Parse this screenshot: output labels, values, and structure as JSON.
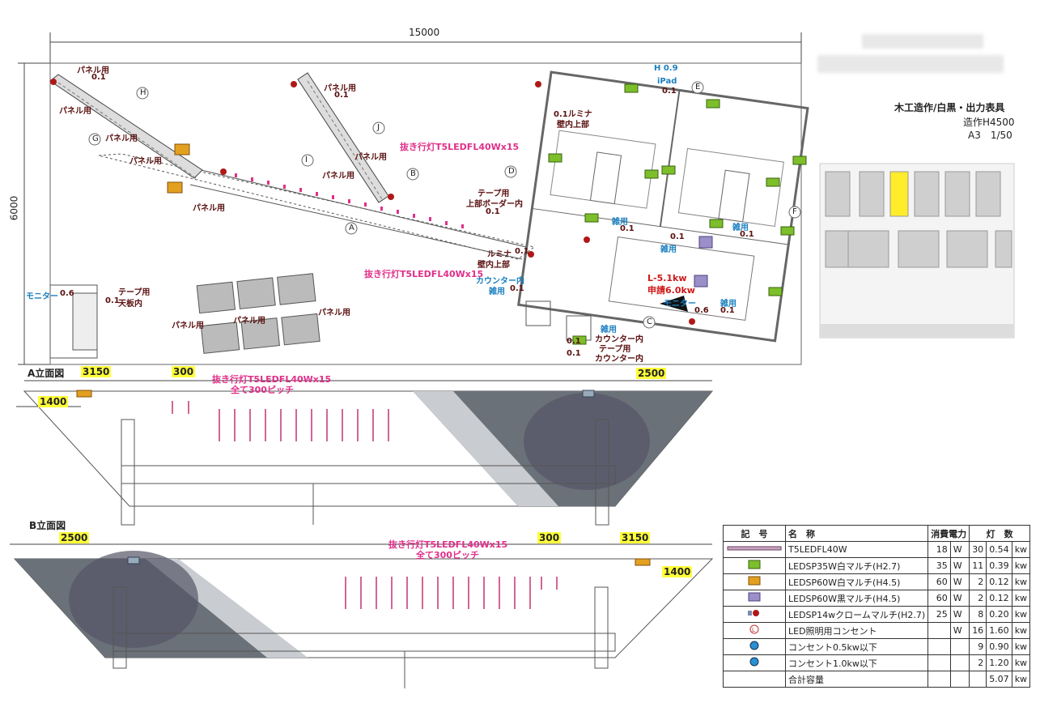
{
  "header": {
    "overall_width": "15000",
    "overall_depth": "6000"
  },
  "title_block": {
    "line1": "木工造作/白黒・出力表具",
    "line2": "造作H4500",
    "line3": "A3　1/50"
  },
  "plan": {
    "h_label": "H 0.9",
    "ipad": "iPad",
    "ipad_val": "0.1",
    "strip_label_top": "抜き行灯T5LEDFL40Wx15",
    "strip_label_bottom": "抜き行灯T5LEDFL40Wx15",
    "tape_upper": "テープ用",
    "tape_upper2": "上部ボーダー内",
    "tape_upper_val": "0.1",
    "lumina_top": "0.1ルミナ",
    "lumina_top2": "壁内上部",
    "lumina_mid": "ルミナ",
    "lumina_mid_val": "0.1",
    "lumina_mid2": "壁内上部",
    "counter_in": "カウンター内",
    "counter_misc": "雑用",
    "counter_val": "0.1",
    "l_power": "L-5.1kw",
    "apply_power": "申請6.0kw",
    "monitor": "モニター",
    "monitor_val": "0.6",
    "misc": "雑用",
    "misc_val": "0.1",
    "misc2_val": "0.1",
    "misc3": "雑用",
    "misc3_val": "0.1",
    "misc4": "雑用",
    "misc4_val": "0.1",
    "bottom_misc": "雑用",
    "bottom_counter": "カウンター内",
    "bottom_tape": "テープ用",
    "bottom_counter2": "カウンター内",
    "bottom_val1": "0.1",
    "bottom_val2": "0.1",
    "panel": "パネル用",
    "panel_val": "0.1",
    "monitor_left": "モニター",
    "monitor_left_val": "0.6",
    "tape_left": "テープ用",
    "tape_left2": "天板内",
    "tape_left_val": "0.1",
    "markers": [
      "A",
      "B",
      "C",
      "D",
      "E",
      "F",
      "G",
      "H",
      "I",
      "J"
    ]
  },
  "elev_a": {
    "title": "A立面図",
    "d3150": "3150",
    "d300": "300",
    "d2500": "2500",
    "d1400": "1400",
    "strip": "抜き行灯T5LEDFL40Wx15",
    "pitch": "全て300ピッチ"
  },
  "elev_b": {
    "title": "B立面図",
    "d2500": "2500",
    "d300": "300",
    "d3150": "3150",
    "d1400": "1400",
    "strip": "抜き行灯T5LEDFL40Wx15",
    "pitch": "全て300ピッチ"
  },
  "legend": {
    "headers": [
      "記　号",
      "名　称",
      "消費電力",
      "灯　数"
    ],
    "rows": [
      {
        "icon": "tube",
        "name": "T5LEDFL40W",
        "watt": "18",
        "unit": "W",
        "count": "30",
        "kw": "0.54",
        "kwu": "kw"
      },
      {
        "icon": "green",
        "name": "LEDSP35W白マルチ(H2.7)",
        "watt": "35",
        "unit": "W",
        "count": "11",
        "kw": "0.39",
        "kwu": "kw"
      },
      {
        "icon": "orange",
        "name": "LEDSP60W白マルチ(H4.5)",
        "watt": "60",
        "unit": "W",
        "count": "2",
        "kw": "0.12",
        "kwu": "kw"
      },
      {
        "icon": "purple",
        "name": "LEDSP60W黒マルチ(H4.5)",
        "watt": "60",
        "unit": "W",
        "count": "2",
        "kw": "0.12",
        "kwu": "kw"
      },
      {
        "icon": "red",
        "name": "LEDSP14wクロームマルチ(H2.7)",
        "watt": "25",
        "unit": "W",
        "count": "8",
        "kw": "0.20",
        "kwu": "kw"
      },
      {
        "icon": "L",
        "name": "LED照明用コンセント",
        "watt": "",
        "unit": "W",
        "count": "16",
        "kw": "1.60",
        "kwu": "kw"
      },
      {
        "icon": "outlet",
        "name": "コンセント0.5kw以下",
        "watt": "",
        "unit": "",
        "count": "9",
        "kw": "0.90",
        "kwu": "kw"
      },
      {
        "icon": "outlet",
        "name": "コンセント1.0kw以下",
        "watt": "",
        "unit": "",
        "count": "2",
        "kw": "1.20",
        "kwu": "kw"
      },
      {
        "icon": "",
        "name": "合計容量",
        "watt": "",
        "unit": "",
        "count": "",
        "kw": "5.07",
        "kwu": "kw"
      }
    ]
  },
  "colors": {
    "pink": "#e0308a",
    "label": "#5a1010",
    "blue": "#1a7fc0",
    "green_fixture": "#7cbf2a",
    "orange_fixture": "#e3a020",
    "purple_fixture": "#9a8fc8",
    "red_dot": "#b01818",
    "highlight": "#ffff3a"
  }
}
